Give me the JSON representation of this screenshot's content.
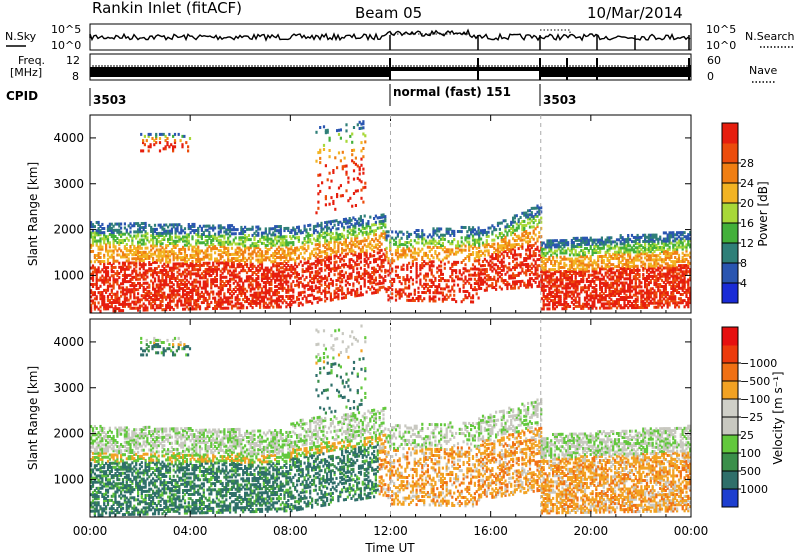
{
  "header": {
    "station": "Rankin Inlet (fitACF)",
    "beam": "Beam 05",
    "date": "10/Mar/2014"
  },
  "noise_panel": {
    "left_label": "N.Sky",
    "right_label": "N.Search",
    "ticks_left": [
      "10^5",
      "10^0"
    ],
    "ticks_right": [
      "10^5",
      "10^0"
    ]
  },
  "freq_panel": {
    "left_label_line1": "Freq.",
    "left_label_line2": "[MHz]",
    "left_ticks": [
      "12",
      "8"
    ],
    "right_label": "Nave",
    "right_ticks": [
      "60",
      "0"
    ]
  },
  "cpid": {
    "label": "CPID",
    "segments": [
      {
        "label": "3503",
        "start_hour": 0
      },
      {
        "label": "normal (fast)  151",
        "start_hour": 12
      },
      {
        "label": "3503",
        "start_hour": 18
      }
    ]
  },
  "x_axis": {
    "label": "Time UT",
    "tick_hours": [
      0,
      4,
      8,
      12,
      16,
      20,
      24
    ],
    "tick_labels": [
      "00:00",
      "04:00",
      "08:00",
      "12:00",
      "16:00",
      "20:00",
      "00:00"
    ]
  },
  "chart_data": [
    {
      "type": "heatmap",
      "name": "power",
      "xlabel": "Time UT",
      "ylabel": "Slant Range [km]",
      "xlim": [
        0,
        24
      ],
      "ylim": [
        180,
        4500
      ],
      "yticks": [
        1000,
        2000,
        3000,
        4000
      ],
      "colorbar": {
        "label": "Power [dB]",
        "ticks": [
          4,
          8,
          12,
          16,
          20,
          24,
          28
        ],
        "colors": [
          "#1a2bd6",
          "#2a55b0",
          "#2f7f78",
          "#43b03a",
          "#a8d838",
          "#f2b323",
          "#f07e12",
          "#ec4c0c",
          "#e61e0e"
        ]
      }
    },
    {
      "type": "heatmap",
      "name": "velocity",
      "xlabel": "Time UT",
      "ylabel": "Slant Range [km]",
      "xlim": [
        0,
        24
      ],
      "ylim": [
        180,
        4500
      ],
      "yticks": [
        1000,
        2000,
        3000,
        4000
      ],
      "colorbar": {
        "label": "Velocity [m s⁻¹]",
        "ticks": [
          "1000",
          "500",
          "100",
          "25",
          "−25",
          "−100",
          "−500",
          "−1000"
        ],
        "colors": [
          "#1e3fd0",
          "#2f6f6a",
          "#3a8f4a",
          "#62c83c",
          "#c8c8c0",
          "#d0d0c8",
          "#f2a223",
          "#f07014",
          "#ec3a0c",
          "#e61010"
        ]
      }
    }
  ]
}
